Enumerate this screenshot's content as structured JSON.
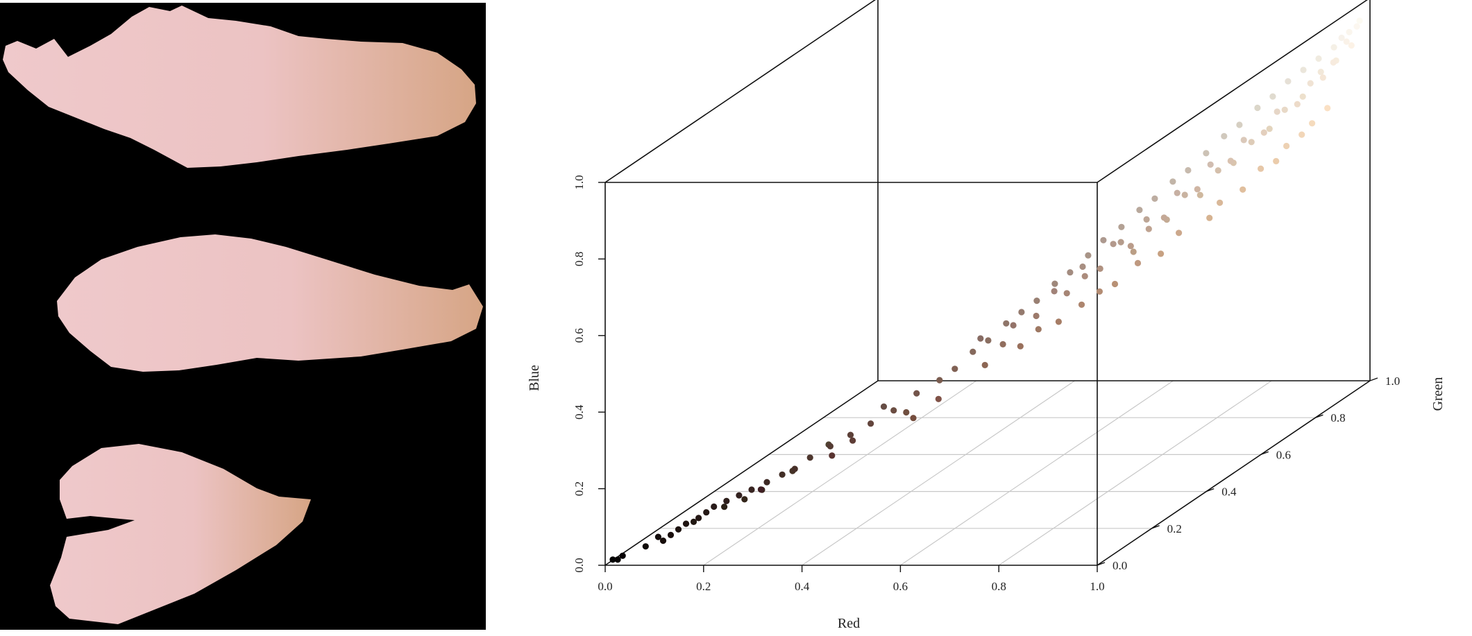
{
  "photo_panel": {
    "background_color": "#000000",
    "specimen_color": "#ecc4c6",
    "specimen_tint": "#d6a585"
  },
  "chart_data": {
    "type": "scatter",
    "dimensions": 3,
    "xlabel": "Red",
    "ylabel": "Green",
    "zlabel": "Blue",
    "xlim": [
      0,
      1
    ],
    "ylim": [
      0,
      1
    ],
    "zlim": [
      0,
      1
    ],
    "x_ticks": [
      "0.0",
      "0.2",
      "0.4",
      "0.6",
      "0.8",
      "1.0"
    ],
    "y_ticks": [
      "0.0",
      "0.2",
      "0.4",
      "0.6",
      "0.8",
      "1.0"
    ],
    "z_ticks": [
      "0.0",
      "0.2",
      "0.4",
      "0.6",
      "0.8",
      "1.0"
    ],
    "grid": "floor",
    "point_color": "rgb(red, green, blue)",
    "points": [
      [
        0.01,
        0.01,
        0.01
      ],
      [
        0.02,
        0.01,
        0.01
      ],
      [
        0.03,
        0.01,
        0.02
      ],
      [
        0.09,
        0.05,
        0.04
      ],
      [
        0.1,
        0.06,
        0.05
      ],
      [
        0.11,
        0.07,
        0.06
      ],
      [
        0.12,
        0.08,
        0.07
      ],
      [
        0.14,
        0.09,
        0.08
      ],
      [
        0.15,
        0.1,
        0.09
      ],
      [
        0.16,
        0.11,
        0.1
      ],
      [
        0.18,
        0.12,
        0.11
      ],
      [
        0.2,
        0.13,
        0.12
      ],
      [
        0.22,
        0.14,
        0.13
      ],
      [
        0.24,
        0.16,
        0.14
      ],
      [
        0.26,
        0.18,
        0.15
      ],
      [
        0.28,
        0.19,
        0.16
      ],
      [
        0.3,
        0.21,
        0.18
      ],
      [
        0.33,
        0.23,
        0.2
      ],
      [
        0.36,
        0.25,
        0.22
      ],
      [
        0.39,
        0.27,
        0.24
      ],
      [
        0.2,
        0.15,
        0.1
      ],
      [
        0.25,
        0.12,
        0.14
      ],
      [
        0.31,
        0.26,
        0.19
      ],
      [
        0.35,
        0.2,
        0.19
      ],
      [
        0.42,
        0.3,
        0.26
      ],
      [
        0.45,
        0.33,
        0.29
      ],
      [
        0.48,
        0.36,
        0.31
      ],
      [
        0.5,
        0.38,
        0.33
      ],
      [
        0.52,
        0.41,
        0.36
      ],
      [
        0.54,
        0.43,
        0.38
      ],
      [
        0.56,
        0.46,
        0.41
      ],
      [
        0.58,
        0.48,
        0.43
      ],
      [
        0.6,
        0.5,
        0.45
      ],
      [
        0.62,
        0.53,
        0.48
      ],
      [
        0.64,
        0.55,
        0.5
      ],
      [
        0.66,
        0.58,
        0.53
      ],
      [
        0.68,
        0.6,
        0.56
      ],
      [
        0.7,
        0.63,
        0.58
      ],
      [
        0.72,
        0.66,
        0.61
      ],
      [
        0.74,
        0.68,
        0.63
      ],
      [
        0.76,
        0.71,
        0.66
      ],
      [
        0.78,
        0.73,
        0.68
      ],
      [
        0.8,
        0.76,
        0.71
      ],
      [
        0.82,
        0.79,
        0.74
      ],
      [
        0.84,
        0.81,
        0.76
      ],
      [
        0.86,
        0.84,
        0.79
      ],
      [
        0.88,
        0.86,
        0.81
      ],
      [
        0.9,
        0.88,
        0.84
      ],
      [
        0.92,
        0.9,
        0.86
      ],
      [
        0.94,
        0.92,
        0.88
      ],
      [
        0.96,
        0.94,
        0.9
      ],
      [
        0.97,
        0.95,
        0.92
      ],
      [
        0.98,
        0.96,
        0.93
      ],
      [
        0.99,
        0.97,
        0.94
      ],
      [
        0.99,
        0.98,
        0.95
      ],
      [
        0.55,
        0.4,
        0.33
      ],
      [
        0.6,
        0.44,
        0.36
      ],
      [
        0.65,
        0.49,
        0.4
      ],
      [
        0.7,
        0.55,
        0.45
      ],
      [
        0.75,
        0.6,
        0.5
      ],
      [
        0.8,
        0.66,
        0.55
      ],
      [
        0.85,
        0.72,
        0.6
      ],
      [
        0.9,
        0.78,
        0.66
      ],
      [
        0.93,
        0.82,
        0.7
      ],
      [
        0.96,
        0.86,
        0.74
      ],
      [
        0.5,
        0.32,
        0.28
      ],
      [
        0.46,
        0.3,
        0.24
      ],
      [
        0.58,
        0.45,
        0.41
      ],
      [
        0.63,
        0.51,
        0.47
      ],
      [
        0.67,
        0.55,
        0.49
      ],
      [
        0.71,
        0.61,
        0.55
      ],
      [
        0.75,
        0.64,
        0.57
      ],
      [
        0.79,
        0.7,
        0.63
      ],
      [
        0.83,
        0.75,
        0.67
      ],
      [
        0.87,
        0.8,
        0.72
      ],
      [
        0.91,
        0.85,
        0.78
      ],
      [
        0.95,
        0.91,
        0.85
      ],
      [
        0.98,
        0.95,
        0.91
      ],
      [
        0.73,
        0.62,
        0.52
      ],
      [
        0.77,
        0.67,
        0.58
      ],
      [
        0.81,
        0.72,
        0.62
      ],
      [
        0.85,
        0.77,
        0.68
      ],
      [
        0.89,
        0.83,
        0.74
      ],
      [
        0.93,
        0.88,
        0.8
      ],
      [
        0.97,
        0.93,
        0.87
      ],
      [
        0.62,
        0.47,
        0.39
      ],
      [
        0.68,
        0.52,
        0.43
      ],
      [
        0.72,
        0.57,
        0.46
      ],
      [
        0.78,
        0.63,
        0.51
      ],
      [
        0.84,
        0.7,
        0.57
      ],
      [
        0.88,
        0.75,
        0.62
      ],
      [
        0.92,
        0.8,
        0.67
      ],
      [
        0.95,
        0.84,
        0.72
      ],
      [
        0.98,
        0.88,
        0.77
      ],
      [
        0.66,
        0.56,
        0.51
      ],
      [
        0.7,
        0.6,
        0.55
      ],
      [
        0.74,
        0.65,
        0.59
      ],
      [
        0.78,
        0.69,
        0.64
      ],
      [
        0.82,
        0.74,
        0.69
      ],
      [
        0.86,
        0.79,
        0.73
      ],
      [
        0.9,
        0.84,
        0.78
      ],
      [
        0.94,
        0.89,
        0.83
      ],
      [
        0.97,
        0.92,
        0.87
      ],
      [
        0.99,
        0.95,
        0.9
      ],
      [
        0.57,
        0.43,
        0.37
      ],
      [
        0.61,
        0.48,
        0.42
      ],
      [
        0.65,
        0.52,
        0.46
      ],
      [
        0.69,
        0.57,
        0.5
      ],
      [
        0.73,
        0.61,
        0.54
      ],
      [
        0.77,
        0.66,
        0.59
      ],
      [
        0.81,
        0.71,
        0.64
      ],
      [
        0.85,
        0.76,
        0.69
      ],
      [
        0.89,
        0.81,
        0.74
      ],
      [
        0.93,
        0.86,
        0.79
      ],
      [
        0.96,
        0.9,
        0.84
      ],
      [
        0.53,
        0.42,
        0.39
      ],
      [
        0.4,
        0.3,
        0.27
      ],
      [
        0.44,
        0.31,
        0.25
      ],
      [
        0.37,
        0.24,
        0.21
      ],
      [
        0.27,
        0.2,
        0.15
      ],
      [
        0.23,
        0.16,
        0.12
      ],
      [
        0.17,
        0.13,
        0.09
      ],
      [
        0.13,
        0.09,
        0.07
      ],
      [
        0.08,
        0.05,
        0.05
      ],
      [
        0.06,
        0.04,
        0.03
      ]
    ]
  }
}
